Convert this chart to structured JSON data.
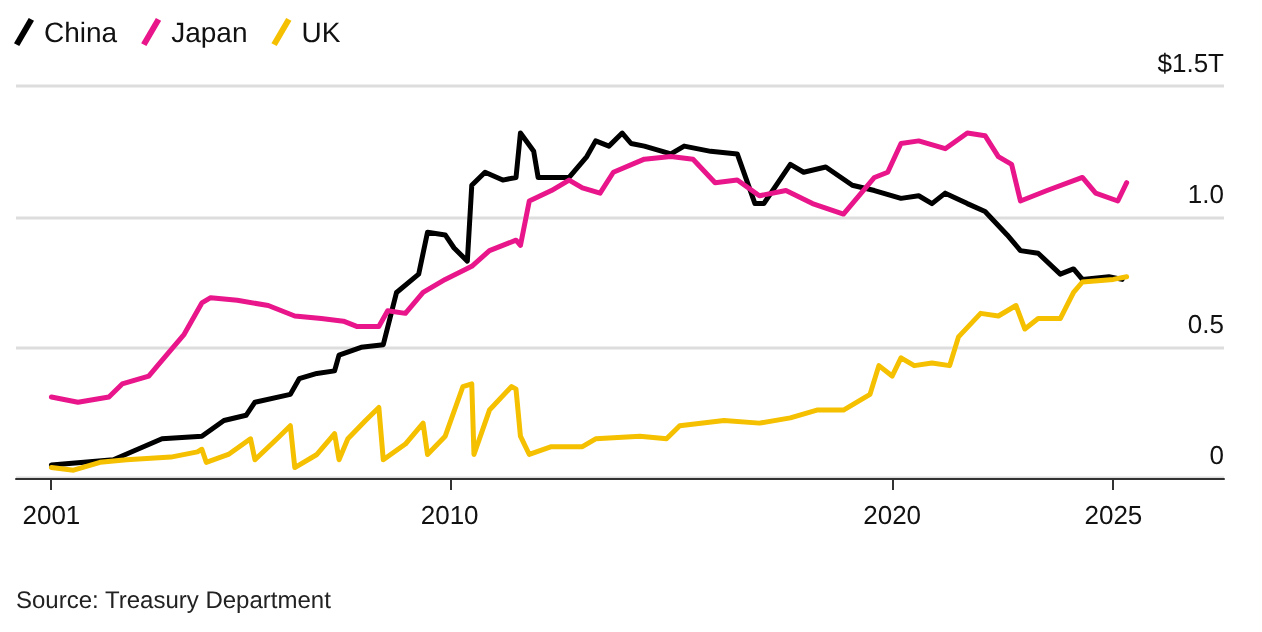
{
  "chart_data": {
    "type": "line",
    "series": [
      {
        "name": "China",
        "color": "#000000",
        "x": [
          2001.0,
          2002.4,
          2003.5,
          2004.4,
          2004.9,
          2005.4,
          2005.6,
          2006.4,
          2006.6,
          2007.0,
          2007.4,
          2007.5,
          2008.0,
          2008.5,
          2008.8,
          2009.3,
          2009.5,
          2009.9,
          2010.1,
          2010.4,
          2010.5,
          2010.8,
          2011.2,
          2011.5,
          2011.6,
          2011.9,
          2012.0,
          2012.3,
          2012.7,
          2013.1,
          2013.3,
          2013.6,
          2013.9,
          2014.1,
          2014.4,
          2015.0,
          2015.3,
          2015.9,
          2016.5,
          2016.9,
          2017.1,
          2017.7,
          2018.0,
          2018.5,
          2019.1,
          2019.6,
          2020.2,
          2020.6,
          2020.9,
          2021.2,
          2021.7,
          2022.1,
          2022.6,
          2022.9,
          2023.3,
          2023.8,
          2024.1,
          2024.3,
          2024.9,
          2025.2
        ],
        "values": [
          0.05,
          0.07,
          0.15,
          0.16,
          0.22,
          0.24,
          0.29,
          0.32,
          0.38,
          0.4,
          0.41,
          0.47,
          0.5,
          0.51,
          0.71,
          0.78,
          0.94,
          0.93,
          0.88,
          0.83,
          1.12,
          1.17,
          1.14,
          1.15,
          1.32,
          1.25,
          1.15,
          1.15,
          1.15,
          1.23,
          1.29,
          1.27,
          1.32,
          1.28,
          1.27,
          1.24,
          1.27,
          1.25,
          1.24,
          1.05,
          1.05,
          1.2,
          1.17,
          1.19,
          1.12,
          1.1,
          1.07,
          1.08,
          1.05,
          1.09,
          1.05,
          1.02,
          0.93,
          0.87,
          0.86,
          0.78,
          0.8,
          0.76,
          0.77,
          0.76
        ]
      },
      {
        "name": "Japan",
        "color": "#e8168a",
        "x": [
          2001.0,
          2001.6,
          2002.3,
          2002.6,
          2003.2,
          2003.5,
          2004.0,
          2004.4,
          2004.6,
          2005.2,
          2005.9,
          2006.5,
          2007.1,
          2007.6,
          2007.9,
          2008.4,
          2008.6,
          2009.0,
          2009.4,
          2009.9,
          2010.5,
          2010.9,
          2011.5,
          2011.6,
          2011.8,
          2012.3,
          2012.7,
          2013.0,
          2013.4,
          2013.7,
          2014.4,
          2015.0,
          2015.5,
          2016.0,
          2016.5,
          2017.0,
          2017.6,
          2018.2,
          2018.9,
          2019.6,
          2019.9,
          2020.2,
          2020.6,
          2021.2,
          2021.7,
          2022.1,
          2022.4,
          2022.7,
          2022.9,
          2023.5,
          2024.3,
          2024.6,
          2025.1,
          2025.3
        ],
        "values": [
          0.31,
          0.29,
          0.31,
          0.36,
          0.39,
          0.45,
          0.55,
          0.67,
          0.69,
          0.68,
          0.66,
          0.62,
          0.61,
          0.6,
          0.58,
          0.58,
          0.64,
          0.63,
          0.71,
          0.76,
          0.81,
          0.87,
          0.91,
          0.89,
          1.06,
          1.1,
          1.14,
          1.11,
          1.09,
          1.17,
          1.22,
          1.23,
          1.22,
          1.13,
          1.14,
          1.08,
          1.1,
          1.05,
          1.01,
          1.15,
          1.17,
          1.28,
          1.29,
          1.26,
          1.32,
          1.31,
          1.23,
          1.2,
          1.06,
          1.1,
          1.15,
          1.09,
          1.06,
          1.13
        ]
      },
      {
        "name": "UK",
        "color": "#f5c000",
        "x": [
          2001.0,
          2001.5,
          2002.1,
          2002.7,
          2003.7,
          2004.3,
          2004.4,
          2004.5,
          2005.0,
          2005.5,
          2005.6,
          2006.1,
          2006.4,
          2006.5,
          2007.0,
          2007.4,
          2007.5,
          2007.7,
          2008.1,
          2008.4,
          2008.5,
          2009.0,
          2009.4,
          2009.5,
          2009.9,
          2010.3,
          2010.5,
          2010.55,
          2010.9,
          2011.4,
          2011.5,
          2011.6,
          2011.8,
          2012.3,
          2013.0,
          2013.3,
          2014.3,
          2014.9,
          2015.2,
          2016.2,
          2017.0,
          2017.7,
          2018.3,
          2018.9,
          2019.3,
          2019.5,
          2019.7,
          2020.0,
          2020.2,
          2020.5,
          2020.9,
          2021.3,
          2021.5,
          2022.0,
          2022.4,
          2022.8,
          2023.0,
          2023.3,
          2023.8,
          2024.1,
          2024.3,
          2025.0,
          2025.3
        ],
        "values": [
          0.04,
          0.03,
          0.06,
          0.07,
          0.08,
          0.1,
          0.11,
          0.06,
          0.09,
          0.15,
          0.07,
          0.15,
          0.2,
          0.04,
          0.09,
          0.17,
          0.07,
          0.15,
          0.22,
          0.27,
          0.07,
          0.13,
          0.21,
          0.09,
          0.16,
          0.35,
          0.36,
          0.09,
          0.26,
          0.35,
          0.34,
          0.16,
          0.09,
          0.12,
          0.12,
          0.15,
          0.16,
          0.15,
          0.2,
          0.22,
          0.21,
          0.23,
          0.26,
          0.26,
          0.3,
          0.32,
          0.43,
          0.39,
          0.46,
          0.43,
          0.44,
          0.43,
          0.54,
          0.63,
          0.62,
          0.66,
          0.57,
          0.61,
          0.61,
          0.71,
          0.75,
          0.76,
          0.77
        ]
      }
    ],
    "xlim": [
      2000.2,
      2027.5
    ],
    "xticks": [
      2001,
      2010,
      2020,
      2025
    ],
    "ylim": [
      0,
      1.5
    ],
    "yticks": [
      0,
      0.5,
      {
        "value": 1,
        "label": "1.0"
      },
      {
        "value": 1.5,
        "label": "$1.5T"
      }
    ],
    "grid": "y",
    "legend": "top left",
    "marker": "none",
    "annotations": [
      "Source: Treasury Department"
    ]
  }
}
